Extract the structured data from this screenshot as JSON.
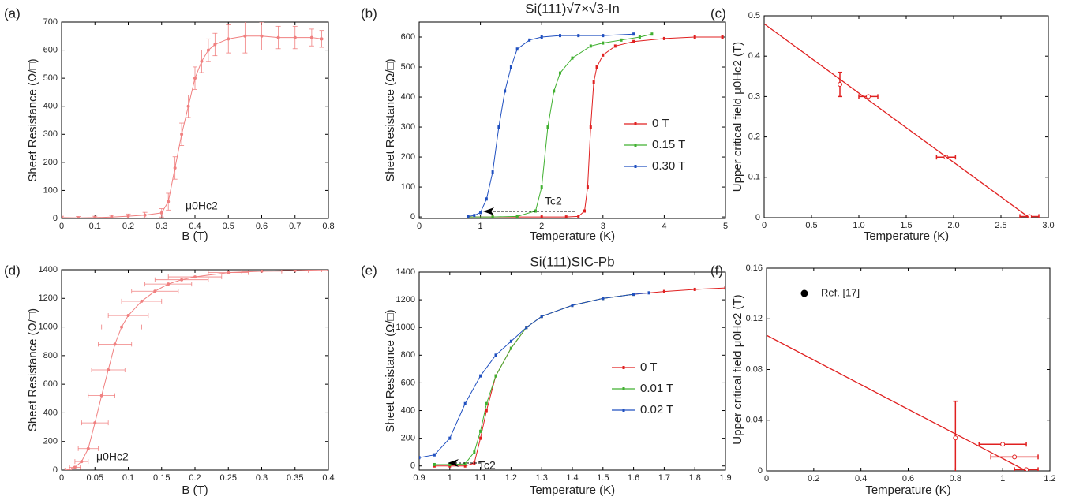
{
  "chart_data": [
    {
      "type": "line",
      "label": "(a)",
      "xlabel": "B (T)",
      "ylabel": "Sheet Resistance (Ω/□)",
      "connect": true,
      "annotation": "μ0Hc2",
      "xlim": [
        0,
        0.8
      ],
      "xticks": [
        0,
        0.1,
        0.2,
        0.3,
        0.4,
        0.5,
        0.6,
        0.7,
        0.8
      ],
      "ylim": [
        0,
        700
      ],
      "yticks": [
        0,
        100,
        200,
        300,
        400,
        500,
        600,
        700
      ],
      "series": [
        {
          "color": "#f08080",
          "x": [
            0,
            0.05,
            0.1,
            0.15,
            0.2,
            0.25,
            0.3,
            0.32,
            0.34,
            0.36,
            0.38,
            0.4,
            0.42,
            0.44,
            0.46,
            0.5,
            0.55,
            0.6,
            0.65,
            0.7,
            0.75,
            0.78
          ],
          "values": [
            3,
            2,
            3,
            5,
            8,
            12,
            20,
            60,
            180,
            300,
            400,
            500,
            560,
            600,
            620,
            640,
            650,
            650,
            645,
            645,
            645,
            640
          ],
          "yerr": [
            5,
            5,
            5,
            6,
            8,
            10,
            15,
            30,
            40,
            40,
            40,
            40,
            40,
            40,
            40,
            50,
            60,
            50,
            40,
            40,
            30,
            30
          ]
        }
      ]
    },
    {
      "type": "line",
      "label": "(b)",
      "title": "Si(111)√7×√3-In",
      "xlabel": "Temperature (K)",
      "ylabel": "Sheet Resistance (Ω/□)",
      "connect": true,
      "annotation": "Tc2",
      "xlim": [
        0,
        5
      ],
      "xticks": [
        0,
        1,
        2,
        3,
        4,
        5
      ],
      "ylim": [
        -5,
        650
      ],
      "yticks": [
        0,
        100,
        200,
        300,
        400,
        500,
        600
      ],
      "series": [
        {
          "name": "0 T",
          "color": "#e02020",
          "x": [
            0.8,
            1.2,
            1.6,
            2.0,
            2.4,
            2.6,
            2.7,
            2.75,
            2.8,
            2.85,
            2.9,
            3.0,
            3.2,
            3.5,
            4,
            4.5,
            4.95
          ],
          "values": [
            0,
            0,
            0,
            0,
            0,
            2,
            20,
            100,
            300,
            450,
            500,
            540,
            570,
            585,
            595,
            600,
            600
          ]
        },
        {
          "name": "0.15 T",
          "color": "#40b030",
          "x": [
            0.8,
            1.2,
            1.6,
            1.9,
            2.0,
            2.1,
            2.2,
            2.3,
            2.5,
            2.8,
            3.0,
            3.3,
            3.6,
            3.8
          ],
          "values": [
            0,
            0,
            2,
            20,
            100,
            300,
            420,
            480,
            530,
            570,
            580,
            590,
            600,
            610
          ]
        },
        {
          "name": "0.30 T",
          "color": "#2050c0",
          "x": [
            0.8,
            0.9,
            1.0,
            1.1,
            1.2,
            1.3,
            1.4,
            1.5,
            1.6,
            1.8,
            2.0,
            2.3,
            2.6,
            3.0,
            3.5
          ],
          "values": [
            2,
            5,
            15,
            60,
            150,
            300,
            420,
            500,
            560,
            590,
            600,
            605,
            605,
            605,
            610
          ]
        }
      ]
    },
    {
      "type": "scatter",
      "label": "(c)",
      "xlabel": "Temperature (K)",
      "ylabel": "Upper critical field μ0Hc2 (T)",
      "xlim": [
        0,
        3
      ],
      "xticks": [
        0,
        0.5,
        {
          "value": 1,
          "label": "1.0"
        },
        1.5,
        {
          "value": 2,
          "label": "2.0"
        },
        2.5,
        {
          "value": 3,
          "label": "3.0"
        }
      ],
      "ylim": [
        0,
        0.5
      ],
      "yticks": [
        0,
        0.1,
        0.2,
        0.3,
        0.4,
        0.5
      ],
      "series": [
        {
          "color": "#e02020",
          "x": [
            0.8,
            1.1,
            1.92,
            2.8
          ],
          "values": [
            0.33,
            0.3,
            0.15,
            0.003
          ],
          "xerr": [
            0,
            0.1,
            0.1,
            0.1
          ],
          "yerr": [
            0.03,
            0,
            0,
            0
          ]
        }
      ],
      "fit": {
        "color": "#e02020",
        "x": [
          0,
          2.8
        ],
        "values": [
          0.48,
          0
        ]
      }
    },
    {
      "type": "line",
      "label": "(d)",
      "xlabel": "B (T)",
      "ylabel": "Sheet Resistance (Ω/□)",
      "connect": true,
      "annotation": "μ0Hc2",
      "xlim": [
        0,
        0.4
      ],
      "xticks": [
        0,
        0.05,
        0.1,
        0.15,
        0.2,
        0.25,
        0.3,
        0.35,
        0.4
      ],
      "ylim": [
        0,
        1400
      ],
      "yticks": [
        0,
        200,
        400,
        600,
        800,
        1000,
        1200,
        1400
      ],
      "series": [
        {
          "color": "#f08080",
          "x": [
            0.01,
            0.02,
            0.03,
            0.04,
            0.05,
            0.06,
            0.07,
            0.08,
            0.09,
            0.1,
            0.12,
            0.14,
            0.16,
            0.18,
            0.2,
            0.25,
            0.3,
            0.35,
            0.4
          ],
          "values": [
            0,
            20,
            60,
            150,
            330,
            520,
            700,
            880,
            1000,
            1080,
            1180,
            1250,
            1300,
            1330,
            1350,
            1380,
            1390,
            1395,
            1400
          ],
          "xerr": [
            0.005,
            0.008,
            0.01,
            0.015,
            0.02,
            0.02,
            0.025,
            0.025,
            0.03,
            0.03,
            0.03,
            0.035,
            0.035,
            0.04,
            0.04,
            0.03,
            0.03,
            0.02,
            0.01
          ]
        }
      ]
    },
    {
      "type": "line",
      "label": "(e)",
      "title": "Si(111)SIC-Pb",
      "xlabel": "Temperature (K)",
      "ylabel": "Sheet Resistance (Ω/□)",
      "connect": true,
      "annotation": "Tc2",
      "xlim": [
        0.9,
        1.9
      ],
      "xticks": [
        0.9,
        1,
        1.1,
        1.2,
        1.3,
        1.4,
        1.5,
        1.6,
        1.7,
        1.8,
        1.9
      ],
      "ylim": [
        -30,
        1400
      ],
      "yticks": [
        0,
        200,
        400,
        600,
        800,
        1000,
        1200,
        1400
      ],
      "series": [
        {
          "name": "0 T",
          "color": "#e02020",
          "x": [
            0.95,
            1.0,
            1.05,
            1.08,
            1.1,
            1.12,
            1.15,
            1.2,
            1.25,
            1.3,
            1.4,
            1.5,
            1.6,
            1.7,
            1.8,
            1.9
          ],
          "values": [
            0,
            0,
            0,
            20,
            200,
            400,
            650,
            850,
            1000,
            1080,
            1160,
            1210,
            1240,
            1260,
            1275,
            1285
          ]
        },
        {
          "name": "0.01 T",
          "color": "#40b030",
          "x": [
            0.95,
            1.0,
            1.05,
            1.08,
            1.1,
            1.12,
            1.15,
            1.2,
            1.25,
            1.3,
            1.4,
            1.5,
            1.6
          ],
          "values": [
            10,
            10,
            15,
            100,
            250,
            450,
            650,
            850,
            1000,
            1080,
            1160,
            1210,
            1240
          ]
        },
        {
          "name": "0.02 T",
          "color": "#2050c0",
          "x": [
            0.9,
            0.95,
            1.0,
            1.05,
            1.1,
            1.15,
            1.2,
            1.25,
            1.3,
            1.4,
            1.5,
            1.6,
            1.65
          ],
          "values": [
            60,
            80,
            200,
            450,
            650,
            800,
            900,
            1000,
            1080,
            1160,
            1210,
            1240,
            1250
          ]
        }
      ]
    },
    {
      "type": "scatter",
      "label": "(f)",
      "xlabel": "Temperature (K)",
      "ylabel": "Upper critical field μ0Hc2 (T)",
      "xlim": [
        0,
        1.2
      ],
      "xticks": [
        0,
        0.2,
        0.4,
        0.6,
        0.8,
        1,
        1.2
      ],
      "ylim": [
        0,
        0.16
      ],
      "yticks": [
        0,
        0.04,
        0.08,
        0.12,
        0.16
      ],
      "series": [
        {
          "color": "#e02020",
          "x": [
            0.8,
            1.0,
            1.05,
            1.1
          ],
          "values": [
            0.026,
            0.021,
            0.011,
            0.001
          ],
          "xerr": [
            0,
            0.1,
            0.1,
            0.05
          ],
          "yerr": [
            0.029,
            0,
            0,
            0
          ]
        },
        {
          "name": "Ref. [17]",
          "color": "#000000",
          "x": [],
          "values": []
        }
      ],
      "fit": {
        "color": "#e02020",
        "x": [
          0,
          1.1
        ],
        "values": [
          0.107,
          0
        ]
      }
    }
  ]
}
